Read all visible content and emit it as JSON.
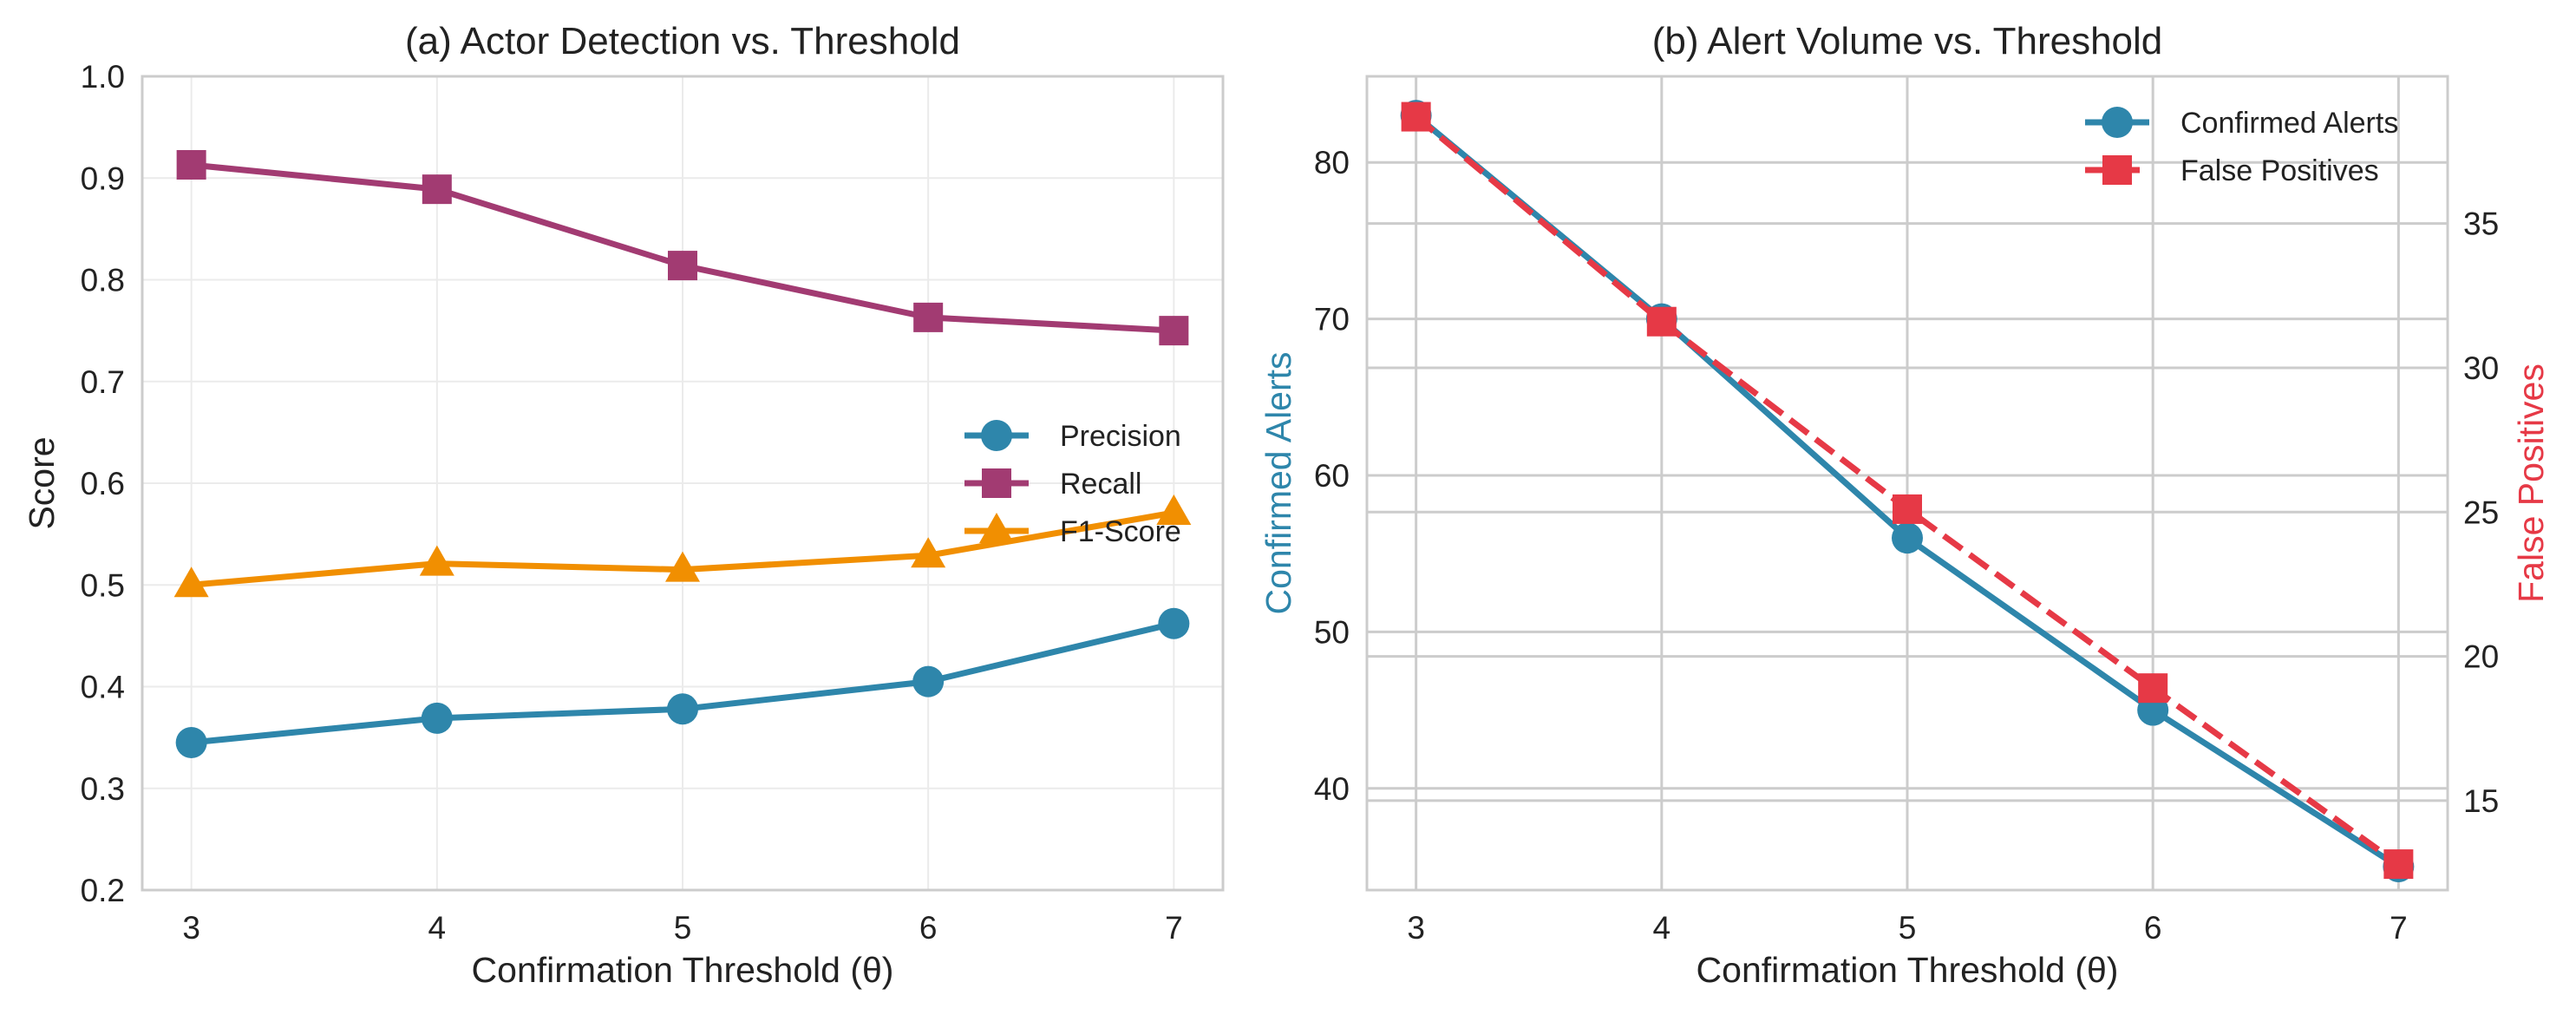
{
  "figure": {
    "background": "#ffffff"
  },
  "chart_data": [
    {
      "id": "a",
      "type": "line",
      "title": "(a) Actor Detection vs. Threshold",
      "xlabel": "Confirmation Threshold (θ)",
      "ylabel": "Score",
      "x": [
        3,
        4,
        5,
        6,
        7
      ],
      "xlim": [
        2.8,
        7.2
      ],
      "ylim": [
        0.2,
        1.0
      ],
      "xticks": [
        "3",
        "4",
        "5",
        "6",
        "7"
      ],
      "yticks": [
        "0.2",
        "0.3",
        "0.4",
        "0.5",
        "0.6",
        "0.7",
        "0.8",
        "0.9",
        "1.0"
      ],
      "grid": true,
      "legend": "center-right",
      "series": [
        {
          "name": "Precision",
          "values": [
            0.345,
            0.369,
            0.378,
            0.405,
            0.462
          ],
          "color": "#2e86ab",
          "marker": "circle",
          "dash": "solid",
          "axis": "left"
        },
        {
          "name": "Recall",
          "values": [
            0.913,
            0.889,
            0.814,
            0.763,
            0.75
          ],
          "color": "#a23b72",
          "marker": "square",
          "dash": "solid",
          "axis": "left"
        },
        {
          "name": "F1-Score",
          "values": [
            0.5,
            0.521,
            0.515,
            0.529,
            0.571
          ],
          "color": "#f18f01",
          "marker": "triangle",
          "dash": "solid",
          "axis": "left"
        }
      ]
    },
    {
      "id": "b",
      "type": "line",
      "title": "(b) Alert Volume vs. Threshold",
      "xlabel": "Confirmation Threshold (θ)",
      "ylabel": "Confirmed Alerts",
      "ylabel_right": "False Positives",
      "ylabel_color": "#2e86ab",
      "ylabel_right_color": "#e63946",
      "x": [
        3,
        4,
        5,
        6,
        7
      ],
      "xlim": [
        2.8,
        7.2
      ],
      "ylim": [
        33.5,
        85.5
      ],
      "ylim_right": [
        11.9,
        40.1
      ],
      "xticks": [
        "3",
        "4",
        "5",
        "6",
        "7"
      ],
      "yticks": [
        "40",
        "50",
        "60",
        "70",
        "80"
      ],
      "yticks_right": [
        "15",
        "20",
        "25",
        "30",
        "35"
      ],
      "grid": true,
      "legend": "top-right",
      "series": [
        {
          "name": "Confirmed Alerts",
          "values": [
            83,
            70,
            56,
            45,
            35
          ],
          "color": "#2e86ab",
          "marker": "circle",
          "dash": "solid",
          "axis": "left"
        },
        {
          "name": "False Positives",
          "values": [
            38.7,
            31.6,
            25.1,
            18.9,
            12.8
          ],
          "color": "#e63946",
          "marker": "square",
          "dash": "dashed",
          "axis": "right"
        }
      ]
    }
  ]
}
